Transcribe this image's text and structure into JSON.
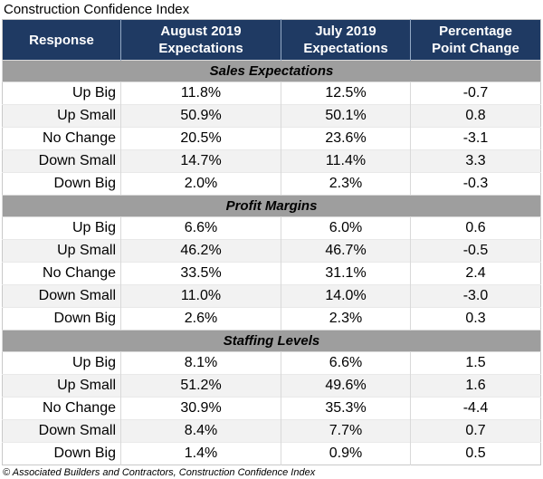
{
  "title": "Construction Confidence Index",
  "footer": "© Associated Builders and Contractors, Construction Confidence Index",
  "colors": {
    "header_bg": "#1F3A63",
    "header_text": "#FFFFFF",
    "section_bg": "#9E9E9E",
    "row_alt_bg": "#F2F2F2",
    "border": "#D9D9D9",
    "text": "#000000"
  },
  "chart_data": {
    "type": "table",
    "title": "Construction Confidence Index",
    "columns": [
      "Response",
      "August 2019\nExpectations",
      "July 2019\nExpectations",
      "Percentage\nPoint Change"
    ],
    "sections": [
      {
        "label": "Sales Expectations",
        "rows": [
          [
            "Up Big",
            "11.8%",
            "12.5%",
            "-0.7"
          ],
          [
            "Up Small",
            "50.9%",
            "50.1%",
            "0.8"
          ],
          [
            "No Change",
            "20.5%",
            "23.6%",
            "-3.1"
          ],
          [
            "Down Small",
            "14.7%",
            "11.4%",
            "3.3"
          ],
          [
            "Down Big",
            "2.0%",
            "2.3%",
            "-0.3"
          ]
        ]
      },
      {
        "label": "Profit Margins",
        "rows": [
          [
            "Up Big",
            "6.6%",
            "6.0%",
            "0.6"
          ],
          [
            "Up Small",
            "46.2%",
            "46.7%",
            "-0.5"
          ],
          [
            "No Change",
            "33.5%",
            "31.1%",
            "2.4"
          ],
          [
            "Down Small",
            "11.0%",
            "14.0%",
            "-3.0"
          ],
          [
            "Down Big",
            "2.6%",
            "2.3%",
            "0.3"
          ]
        ]
      },
      {
        "label": "Staffing Levels",
        "rows": [
          [
            "Up Big",
            "8.1%",
            "6.6%",
            "1.5"
          ],
          [
            "Up Small",
            "51.2%",
            "49.6%",
            "1.6"
          ],
          [
            "No Change",
            "30.9%",
            "35.3%",
            "-4.4"
          ],
          [
            "Down Small",
            "8.4%",
            "7.7%",
            "0.7"
          ],
          [
            "Down Big",
            "1.4%",
            "0.9%",
            "0.5"
          ]
        ]
      }
    ]
  }
}
